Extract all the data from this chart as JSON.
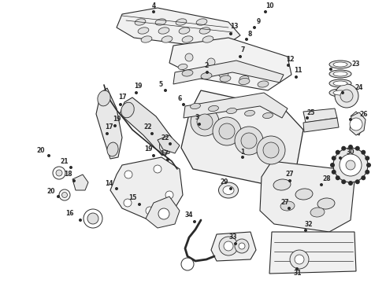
{
  "background_color": "#ffffff",
  "line_color": "#2a2a2a",
  "fig_width": 4.9,
  "fig_height": 3.6,
  "dpi": 100,
  "labels": [
    [
      "4",
      195,
      12
    ],
    [
      "13",
      295,
      40
    ],
    [
      "10",
      338,
      12
    ],
    [
      "9",
      325,
      32
    ],
    [
      "8",
      315,
      48
    ],
    [
      "7",
      305,
      68
    ],
    [
      "2",
      265,
      88
    ],
    [
      "5",
      210,
      112
    ],
    [
      "6",
      235,
      130
    ],
    [
      "3",
      255,
      155
    ],
    [
      "1",
      310,
      198
    ],
    [
      "12",
      368,
      80
    ],
    [
      "11",
      378,
      95
    ],
    [
      "23",
      424,
      85
    ],
    [
      "24",
      430,
      115
    ],
    [
      "25",
      392,
      148
    ],
    [
      "26",
      448,
      148
    ],
    [
      "19",
      175,
      115
    ],
    [
      "17",
      155,
      130
    ],
    [
      "19",
      148,
      158
    ],
    [
      "17",
      138,
      168
    ],
    [
      "22",
      198,
      168
    ],
    [
      "19",
      198,
      195
    ],
    [
      "17",
      215,
      200
    ],
    [
      "20",
      62,
      195
    ],
    [
      "21",
      90,
      210
    ],
    [
      "18",
      95,
      228
    ],
    [
      "20",
      75,
      248
    ],
    [
      "14",
      148,
      238
    ],
    [
      "15",
      178,
      258
    ],
    [
      "16",
      102,
      278
    ],
    [
      "22",
      218,
      182
    ],
    [
      "27",
      370,
      228
    ],
    [
      "28",
      410,
      232
    ],
    [
      "27",
      368,
      262
    ],
    [
      "30",
      432,
      198
    ],
    [
      "29",
      295,
      238
    ],
    [
      "32",
      388,
      290
    ],
    [
      "31",
      378,
      340
    ],
    [
      "33",
      300,
      308
    ],
    [
      "34",
      248,
      280
    ]
  ]
}
